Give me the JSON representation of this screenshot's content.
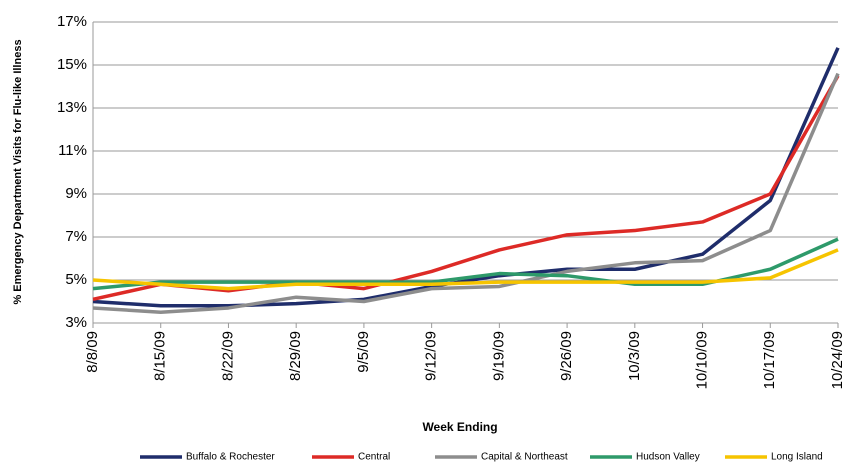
{
  "chart_data": {
    "type": "line",
    "y_label": "% Emergency Department Visits for Flu-like Illness",
    "x_label": "Week Ending",
    "categories": [
      "8/8/09",
      "8/15/09",
      "8/22/09",
      "8/29/09",
      "9/5/09",
      "9/12/09",
      "9/19/09",
      "9/26/09",
      "10/3/09",
      "10/10/09",
      "10/17/09",
      "10/24/09"
    ],
    "series": [
      {
        "name": "Buffalo & Rochester",
        "color": "#1f2d6b",
        "values": [
          4.0,
          3.8,
          3.8,
          3.9,
          4.1,
          4.7,
          5.2,
          5.5,
          5.5,
          6.2,
          8.7,
          15.8
        ]
      },
      {
        "name": "Central",
        "color": "#dd2a26",
        "values": [
          4.1,
          4.8,
          4.5,
          4.9,
          4.6,
          5.4,
          6.4,
          7.1,
          7.3,
          7.7,
          9.0,
          14.5
        ]
      },
      {
        "name": "Capital & Northeast",
        "color": "#8d8d8d",
        "values": [
          3.7,
          3.5,
          3.7,
          4.2,
          4.0,
          4.6,
          4.7,
          5.4,
          5.8,
          5.9,
          7.3,
          14.6
        ]
      },
      {
        "name": "Hudson Valley",
        "color": "#2e9a6a",
        "values": [
          4.6,
          4.9,
          4.9,
          4.9,
          4.9,
          4.9,
          5.3,
          5.2,
          4.8,
          4.8,
          5.5,
          6.9
        ]
      },
      {
        "name": "Long Island",
        "color": "#f6c400",
        "values": [
          5.0,
          4.8,
          4.6,
          4.8,
          4.8,
          4.8,
          4.9,
          4.9,
          4.9,
          4.9,
          5.1,
          6.4
        ]
      }
    ],
    "ylim": [
      3,
      17
    ],
    "yticks": [
      {
        "value": 3,
        "label": "3%"
      },
      {
        "value": 5,
        "label": "5%"
      },
      {
        "value": 7,
        "label": "7%"
      },
      {
        "value": 9,
        "label": "9%"
      },
      {
        "value": 11,
        "label": "11%"
      },
      {
        "value": 13,
        "label": "13%"
      },
      {
        "value": 15,
        "label": "15%"
      },
      {
        "value": 17,
        "label": "17%"
      }
    ],
    "grid": true
  }
}
